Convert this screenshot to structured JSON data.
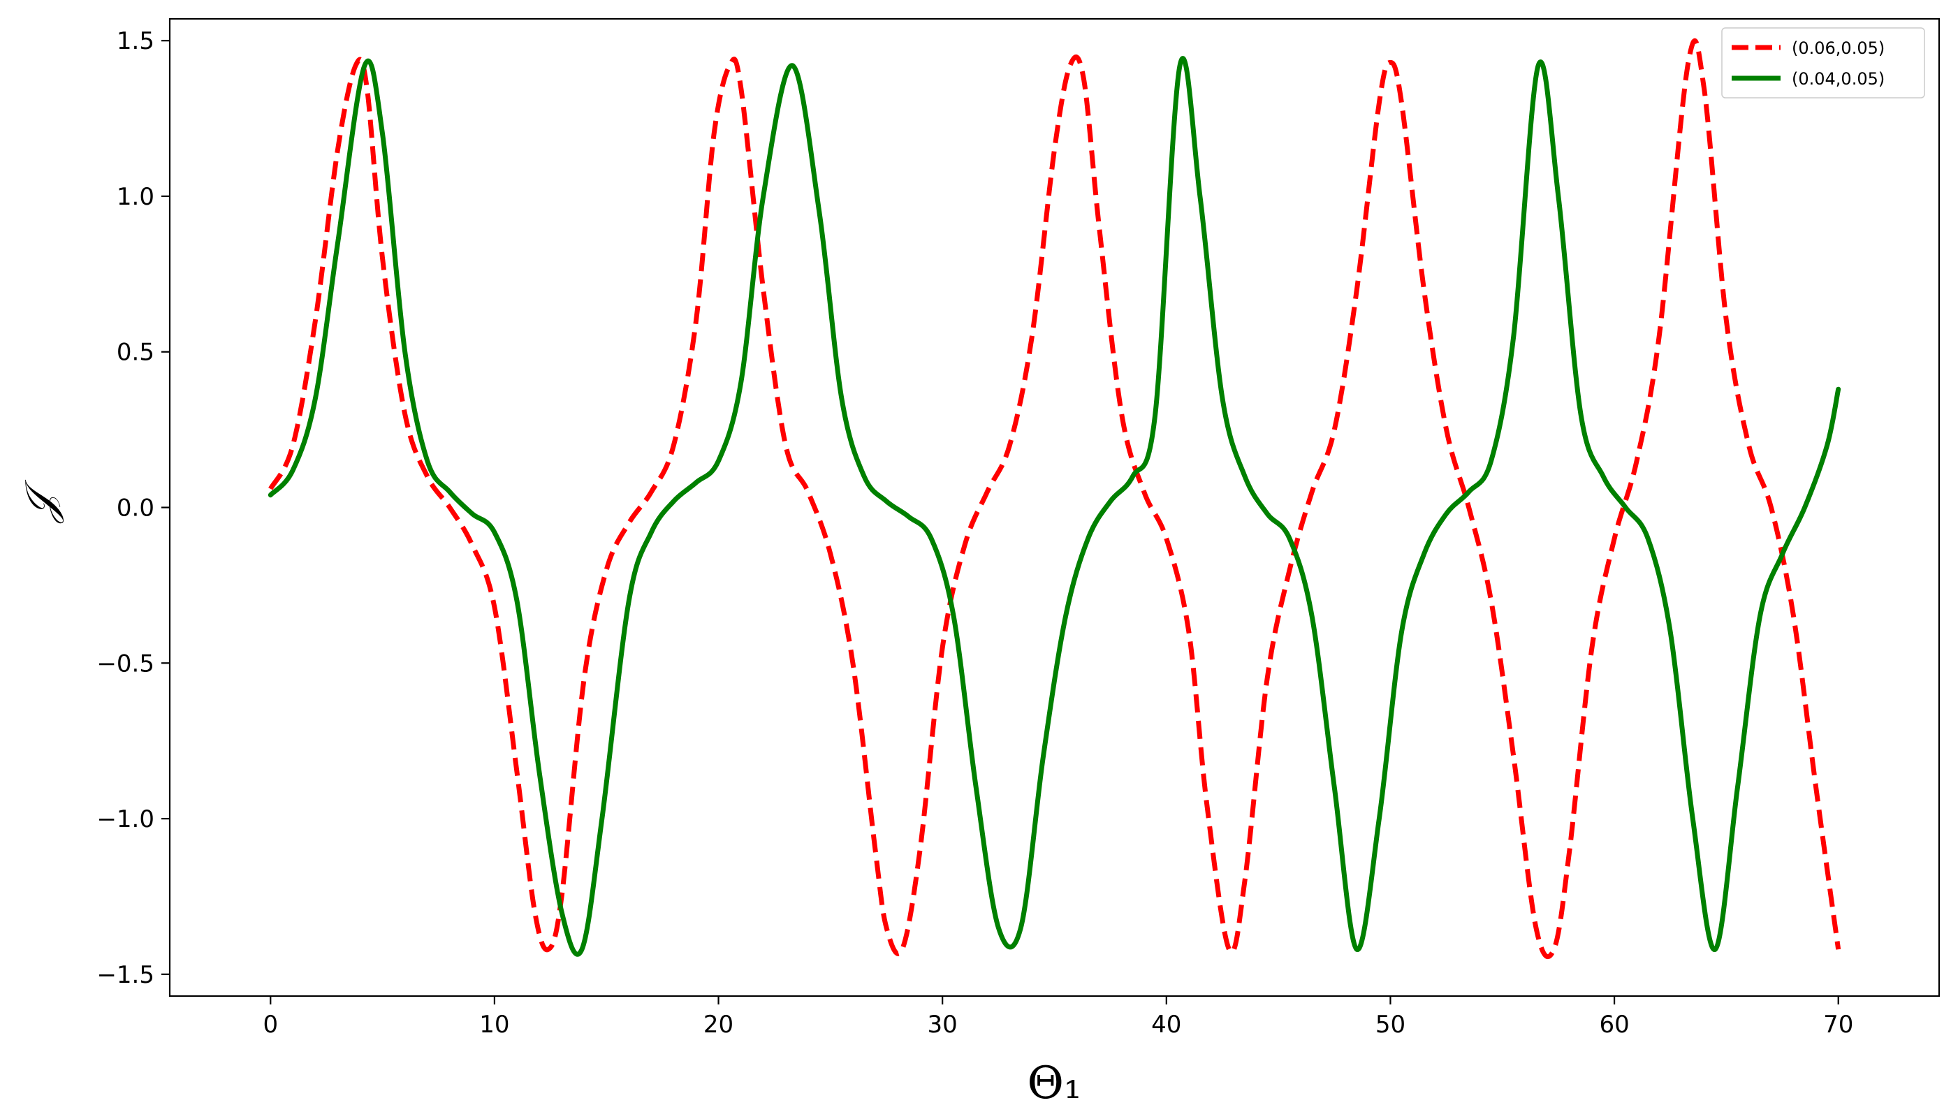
{
  "chart_data": {
    "type": "line",
    "title": "",
    "xlabel": "Θ₁",
    "ylabel": "𝒥",
    "xlim": [
      -4.5,
      74.5
    ],
    "ylim": [
      -1.57,
      1.57
    ],
    "xticks": [
      0,
      10,
      20,
      30,
      40,
      50,
      60,
      70
    ],
    "yticks": [
      -1.5,
      -1.0,
      -0.5,
      0.0,
      0.5,
      1.0,
      1.5
    ],
    "xtick_labels": [
      "0",
      "10",
      "20",
      "30",
      "40",
      "50",
      "60",
      "70"
    ],
    "ytick_labels": [
      "−1.5",
      "−1.0",
      "−0.5",
      "0.0",
      "0.5",
      "1.0",
      "1.5"
    ],
    "grid": false,
    "legend_position": "top-right",
    "series": [
      {
        "name": "(0.06,0.05)",
        "color": "#ff0000",
        "style": "dashed",
        "x": [
          0,
          1,
          2,
          3,
          3.8,
          4.3,
          5,
          6,
          7,
          8,
          9,
          10,
          11,
          11.8,
          12.4,
          13,
          14,
          15,
          16,
          17,
          18,
          19,
          19.8,
          20.5,
          21,
          22,
          23,
          24,
          25,
          26,
          27,
          27.5,
          28.2,
          29,
          30,
          31,
          32,
          33,
          34,
          35,
          35.7,
          36.3,
          37,
          38,
          39,
          40,
          41,
          41.8,
          42.8,
          43.5,
          44.5,
          45.5,
          46.5,
          47.5,
          48.5,
          49.5,
          50,
          50.5,
          51.5,
          52.5,
          53.5,
          54.5,
          55.5,
          56.5,
          57.3,
          58,
          59,
          60,
          61,
          62,
          63.3,
          64,
          65,
          66,
          67,
          68,
          69,
          70
        ],
        "y": [
          0.06,
          0.2,
          0.6,
          1.15,
          1.42,
          1.35,
          0.8,
          0.3,
          0.1,
          0.0,
          -0.12,
          -0.32,
          -0.85,
          -1.3,
          -1.42,
          -1.25,
          -0.55,
          -0.2,
          -0.05,
          0.05,
          0.2,
          0.6,
          1.2,
          1.42,
          1.35,
          0.7,
          0.2,
          0.05,
          -0.15,
          -0.5,
          -1.1,
          -1.35,
          -1.42,
          -1.1,
          -0.45,
          -0.12,
          0.05,
          0.2,
          0.55,
          1.15,
          1.42,
          1.38,
          0.9,
          0.3,
          0.05,
          -0.1,
          -0.4,
          -0.95,
          -1.42,
          -1.2,
          -0.55,
          -0.2,
          0.05,
          0.25,
          0.7,
          1.3,
          1.43,
          1.3,
          0.7,
          0.25,
          0.0,
          -0.3,
          -0.8,
          -1.35,
          -1.42,
          -1.1,
          -0.45,
          -0.1,
          0.15,
          0.55,
          1.43,
          1.35,
          0.6,
          0.2,
          0.0,
          -0.35,
          -0.9,
          -1.42
        ]
      },
      {
        "name": "(0.04,0.05)",
        "color": "#008000",
        "style": "solid",
        "x": [
          0,
          1,
          2,
          3,
          4.2,
          5,
          6,
          7,
          8,
          9,
          10,
          11,
          12,
          13,
          13.9,
          14.8,
          16,
          17,
          18,
          19,
          20,
          21,
          22,
          23.3,
          24.5,
          25.5,
          26.5,
          27.5,
          28.5,
          29.5,
          30.5,
          31.5,
          32.5,
          33.5,
          34.5,
          35.5,
          36.5,
          37.5,
          38.5,
          39.5,
          40.6,
          41.5,
          42.5,
          43.5,
          44.5,
          45.5,
          46.5,
          47.5,
          48.5,
          49.5,
          50.5,
          51.5,
          52.5,
          53.5,
          54.5,
          55.5,
          56.6,
          57.5,
          58.5,
          59.5,
          60.5,
          61.5,
          62.5,
          63.5,
          64.5,
          65.5,
          66.5,
          67.5,
          68.5,
          69.5,
          70
        ],
        "y": [
          0.04,
          0.12,
          0.35,
          0.85,
          1.42,
          1.2,
          0.5,
          0.15,
          0.05,
          -0.02,
          -0.08,
          -0.3,
          -0.85,
          -1.3,
          -1.42,
          -1.0,
          -0.3,
          -0.08,
          0.02,
          0.08,
          0.15,
          0.4,
          1.0,
          1.42,
          0.95,
          0.35,
          0.1,
          0.02,
          -0.03,
          -0.1,
          -0.35,
          -0.9,
          -1.35,
          -1.35,
          -0.8,
          -0.35,
          -0.1,
          0.02,
          0.1,
          0.3,
          1.42,
          1.0,
          0.35,
          0.1,
          -0.02,
          -0.1,
          -0.35,
          -0.9,
          -1.42,
          -1.0,
          -0.4,
          -0.15,
          -0.02,
          0.05,
          0.15,
          0.55,
          1.42,
          1.0,
          0.3,
          0.1,
          0.0,
          -0.1,
          -0.4,
          -1.0,
          -1.42,
          -0.9,
          -0.35,
          -0.15,
          0.0,
          0.2,
          0.38
        ]
      }
    ]
  }
}
